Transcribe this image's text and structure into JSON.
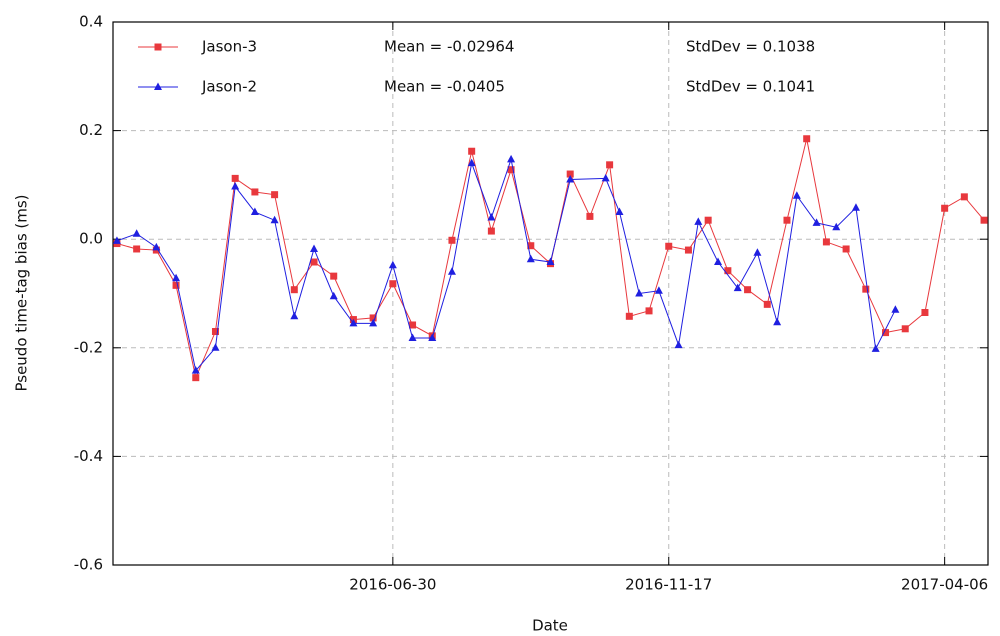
{
  "chart_data": {
    "type": "line",
    "x_label": "Date",
    "y_label": "Pseudo time-tag bias (ms)",
    "xlim": [
      "2016-02-09",
      "2017-04-28"
    ],
    "xticks": [
      "2016-06-30",
      "2016-11-17",
      "2017-04-06"
    ],
    "ylim": [
      -0.6,
      0.4
    ],
    "yticks": [
      0.4,
      0.2,
      {
        "value": 0,
        "label": "0.0"
      },
      -0.2,
      -0.4,
      -0.6
    ],
    "grid": true,
    "series": [
      {
        "name": "Jason-3",
        "color": "#e8383d",
        "marker": "square",
        "mean": "Mean = -0.02964",
        "stddev": "StdDev = 0.1038",
        "x": [
          "2016-02-11",
          "2016-02-21",
          "2016-03-02",
          "2016-03-12",
          "2016-03-22",
          "2016-04-01",
          "2016-04-11",
          "2016-04-21",
          "2016-05-01",
          "2016-05-11",
          "2016-05-21",
          "2016-05-31",
          "2016-06-10",
          "2016-06-20",
          "2016-06-30",
          "2016-07-10",
          "2016-07-20",
          "2016-07-30",
          "2016-08-09",
          "2016-08-19",
          "2016-08-29",
          "2016-09-08",
          "2016-09-18",
          "2016-09-28",
          "2016-10-08",
          "2016-10-18",
          "2016-10-28",
          "2016-11-07",
          "2016-11-17",
          "2016-11-27",
          "2016-12-07",
          "2016-12-17",
          "2016-12-27",
          "2017-01-06",
          "2017-01-16",
          "2017-01-26",
          "2017-02-05",
          "2017-02-15",
          "2017-02-25",
          "2017-03-07",
          "2017-03-17",
          "2017-03-27",
          "2017-04-06",
          "2017-04-16",
          "2017-04-26"
        ],
        "values": [
          -0.008,
          -0.018,
          -0.02,
          -0.085,
          -0.255,
          -0.17,
          0.112,
          0.087,
          0.082,
          -0.093,
          -0.042,
          -0.068,
          -0.148,
          -0.145,
          -0.082,
          -0.158,
          -0.178,
          -0.002,
          0.162,
          0.015,
          0.128,
          -0.012,
          -0.045,
          0.12,
          0.042,
          0.137,
          -0.142,
          -0.132,
          -0.013,
          -0.02,
          0.035,
          -0.058,
          -0.093,
          -0.12,
          0.035,
          0.185,
          -0.005,
          -0.018,
          -0.092,
          -0.172,
          -0.165,
          -0.135,
          0.057,
          0.078,
          0.035
        ]
      },
      {
        "name": "Jason-2",
        "color": "#1f1fe0",
        "marker": "triangle",
        "mean": "Mean = -0.0405",
        "stddev": "StdDev = 0.1041",
        "x": [
          "2016-02-11",
          "2016-02-21",
          "2016-03-02",
          "2016-03-12",
          "2016-03-22",
          "2016-04-01",
          "2016-04-11",
          "2016-04-21",
          "2016-05-01",
          "2016-05-11",
          "2016-05-21",
          "2016-05-31",
          "2016-06-10",
          "2016-06-20",
          "2016-06-30",
          "2016-07-10",
          "2016-07-20",
          "2016-07-30",
          "2016-08-09",
          "2016-08-19",
          "2016-08-29",
          "2016-09-08",
          "2016-09-18",
          "2016-09-28",
          "2016-10-16",
          "2016-10-23",
          "2016-11-02",
          "2016-11-12",
          "2016-11-22",
          "2016-12-02",
          "2016-12-12",
          "2016-12-22",
          "2017-01-01",
          "2017-01-11",
          "2017-01-21",
          "2017-01-31",
          "2017-02-10",
          "2017-02-20",
          "2017-03-02",
          "2017-03-12"
        ],
        "values": [
          -0.003,
          0.01,
          -0.015,
          -0.072,
          -0.242,
          -0.2,
          0.097,
          0.05,
          0.035,
          -0.142,
          -0.018,
          -0.105,
          -0.155,
          -0.155,
          -0.048,
          -0.182,
          -0.182,
          -0.06,
          0.14,
          0.04,
          0.147,
          -0.037,
          -0.042,
          0.11,
          0.112,
          0.05,
          -0.1,
          -0.095,
          -0.195,
          0.032,
          -0.042,
          -0.09,
          -0.025,
          -0.153,
          0.08,
          0.03,
          0.022,
          0.058,
          -0.202,
          -0.13
        ]
      }
    ]
  }
}
